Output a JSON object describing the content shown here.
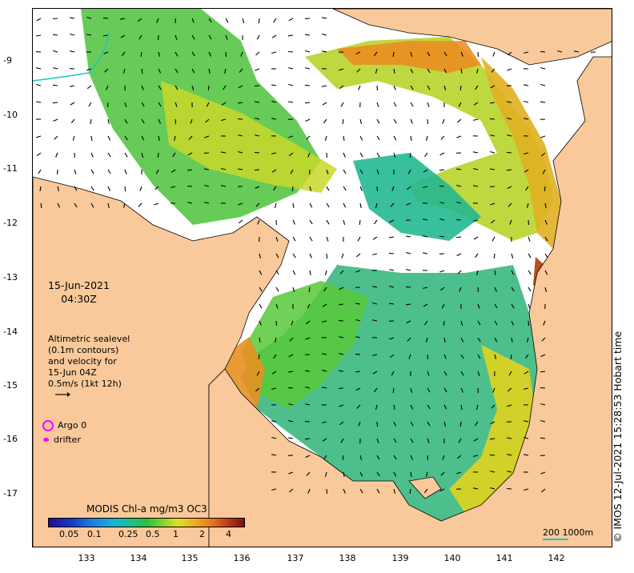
{
  "map": {
    "date": "15-Jun-2021",
    "time": "04:30Z",
    "legend_lines": [
      "Altimetric sealevel",
      "(0.1m contours)",
      "and velocity for",
      "15-Jun 04Z",
      "0.5m/s (1kt 12h)"
    ],
    "argo_label": "Argo 0",
    "drifter_label": "drifter",
    "colorbar_title": "MODIS Chl-a mg/m3 OC3",
    "colorbar_ticks": [
      "0.05",
      "0.1",
      "0.25",
      "0.5",
      "1",
      "2",
      "4"
    ],
    "scale_label": "200  1000m",
    "copyright": "© IMOS 12-Jul-2021 15:28:53 Hobart time",
    "y_axis_labels": [
      "-9",
      "-10",
      "-11",
      "-12",
      "-13",
      "-14",
      "-15",
      "-16",
      "-17"
    ],
    "x_axis_labels": [
      "133",
      "134",
      "135",
      "136",
      "137",
      "138",
      "139",
      "140",
      "141",
      "142"
    ],
    "colors": {
      "land": "#f9c99b",
      "coast": "#000000",
      "velocity_arrow": "#000000",
      "argo": "#ff00ff",
      "contour": "#20c0c8"
    }
  }
}
